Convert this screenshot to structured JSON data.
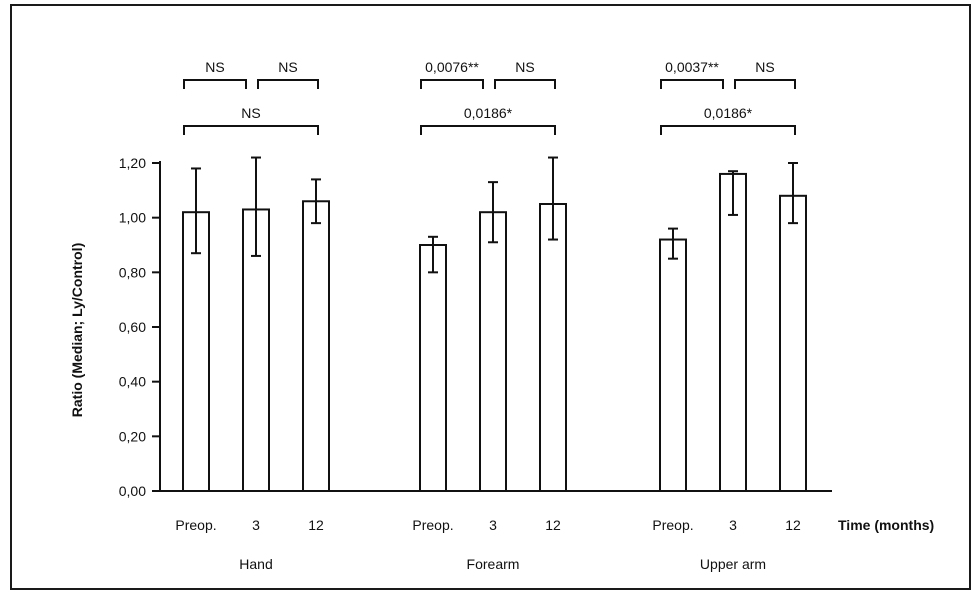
{
  "chart_data": {
    "type": "bar",
    "ylabel": "Ratio (Median; Ly/Control)",
    "xlabel": "Time (months)",
    "ylim": [
      0,
      1.2
    ],
    "yticks": [
      "0,00",
      "0,20",
      "0,40",
      "0,60",
      "0,80",
      "1,00",
      "1,20"
    ],
    "grid": false,
    "legend": "none",
    "groups": [
      {
        "label": "Hand",
        "categories": [
          "Preop.",
          "3",
          "12"
        ],
        "values": [
          1.02,
          1.03,
          1.06
        ],
        "error_low": [
          0.87,
          0.86,
          0.98
        ],
        "error_high": [
          1.18,
          1.22,
          1.14
        ],
        "comparisons": [
          {
            "from": 0,
            "to": 1,
            "label": "NS",
            "level": 1
          },
          {
            "from": 1,
            "to": 2,
            "label": "NS",
            "level": 1
          },
          {
            "from": 0,
            "to": 2,
            "label": "NS",
            "level": 2
          }
        ]
      },
      {
        "label": "Forearm",
        "categories": [
          "Preop.",
          "3",
          "12"
        ],
        "values": [
          0.9,
          1.02,
          1.05
        ],
        "error_low": [
          0.8,
          0.91,
          0.92
        ],
        "error_high": [
          0.93,
          1.13,
          1.22
        ],
        "comparisons": [
          {
            "from": 0,
            "to": 1,
            "label": "0,0076**",
            "level": 1
          },
          {
            "from": 1,
            "to": 2,
            "label": "NS",
            "level": 1
          },
          {
            "from": 0,
            "to": 2,
            "label": "0,0186*",
            "level": 2
          }
        ]
      },
      {
        "label": "Upper arm",
        "categories": [
          "Preop.",
          "3",
          "12"
        ],
        "values": [
          0.92,
          1.16,
          1.08
        ],
        "error_low": [
          0.85,
          1.01,
          0.98
        ],
        "error_high": [
          0.96,
          1.17,
          1.2
        ],
        "comparisons": [
          {
            "from": 0,
            "to": 1,
            "label": "0,0037**",
            "level": 1
          },
          {
            "from": 1,
            "to": 2,
            "label": "NS",
            "level": 1
          },
          {
            "from": 0,
            "to": 2,
            "label": "0,0186*",
            "level": 2
          }
        ]
      }
    ]
  }
}
